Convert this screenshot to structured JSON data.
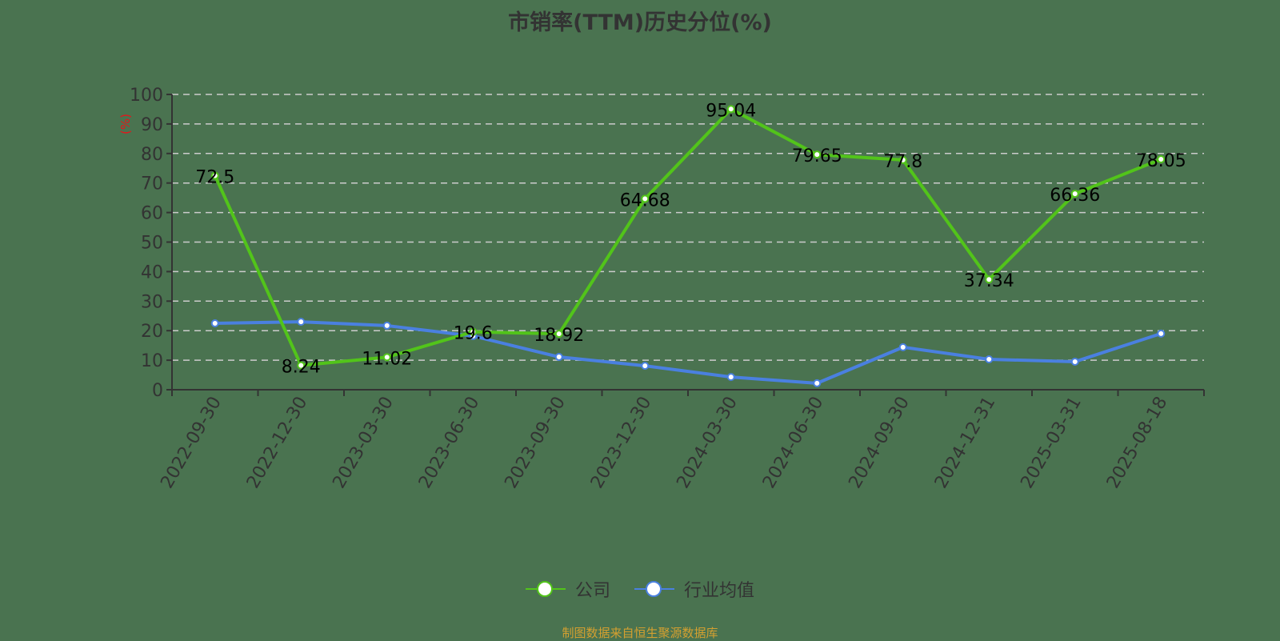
{
  "title": "市销率(TTM)历史分位(%)",
  "source_note": "制图数据来自恒生聚源数据库",
  "legend": [
    {
      "label": "公司",
      "color": "#52c41a"
    },
    {
      "label": "行业均值",
      "color": "#4a80e0"
    }
  ],
  "chart_data": {
    "type": "line",
    "title": "市销率(TTM)历史分位(%)",
    "xlabel": "",
    "ylabel": "(%)",
    "ylim": [
      0,
      100
    ],
    "yticks": [
      0,
      10,
      20,
      30,
      40,
      50,
      60,
      70,
      80,
      90,
      100
    ],
    "grid": true,
    "legend_position": "bottom",
    "categories": [
      "2022-09-30",
      "2022-12-30",
      "2023-03-30",
      "2023-06-30",
      "2023-09-30",
      "2023-12-30",
      "2024-03-30",
      "2024-06-30",
      "2024-09-30",
      "2024-12-31",
      "2025-03-31",
      "2025-08-18"
    ],
    "series": [
      {
        "name": "公司",
        "color": "#52c41a",
        "values": [
          72.5,
          8.24,
          11.02,
          19.6,
          18.92,
          64.68,
          95.04,
          79.65,
          77.8,
          37.34,
          66.36,
          78.05
        ],
        "labels_shown": true
      },
      {
        "name": "行业均值",
        "color": "#4a80e0",
        "values": [
          22.5,
          23.0,
          21.7,
          18.2,
          11.1,
          8.1,
          4.3,
          2.2,
          14.4,
          10.3,
          9.5,
          19.0
        ],
        "labels_shown": false
      }
    ]
  }
}
